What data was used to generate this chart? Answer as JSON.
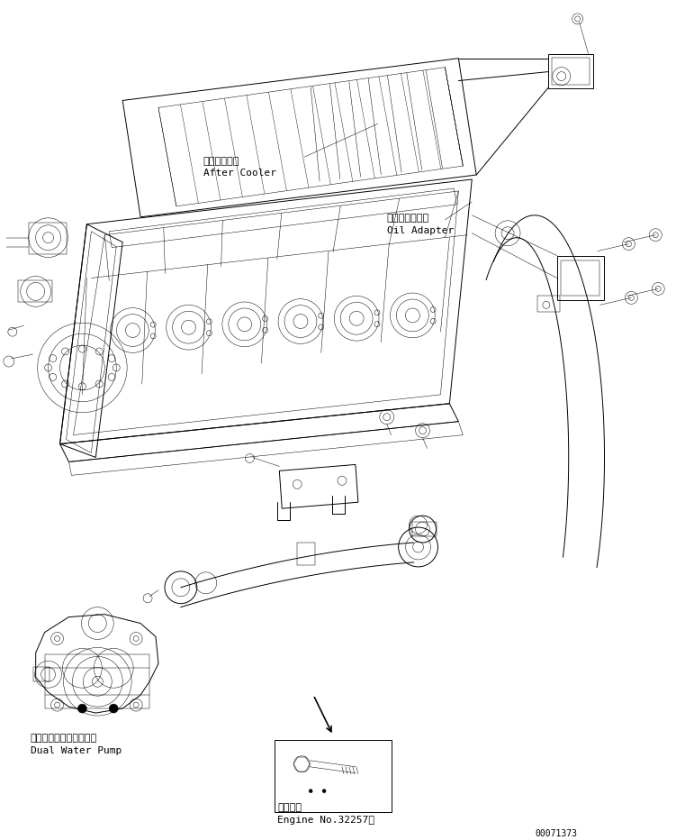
{
  "bg_color": "#ffffff",
  "line_color": "#000000",
  "text_color": "#000000",
  "page_id": "00071373",
  "labels": {
    "after_cooler_jp": "アフタクーラ",
    "after_cooler_en": "After Cooler",
    "oil_adapter_jp": "オイルアダプタ",
    "oil_adapter_en": "Oil Adapter",
    "dual_water_pump_jp": "デュアルウォータポンプ",
    "dual_water_pump_en": "Dual Water Pump",
    "applicable_jp": "適用号機",
    "applicable_en": "Engine No.32257～"
  },
  "fig_width": 7.51,
  "fig_height": 9.32,
  "dpi": 100
}
